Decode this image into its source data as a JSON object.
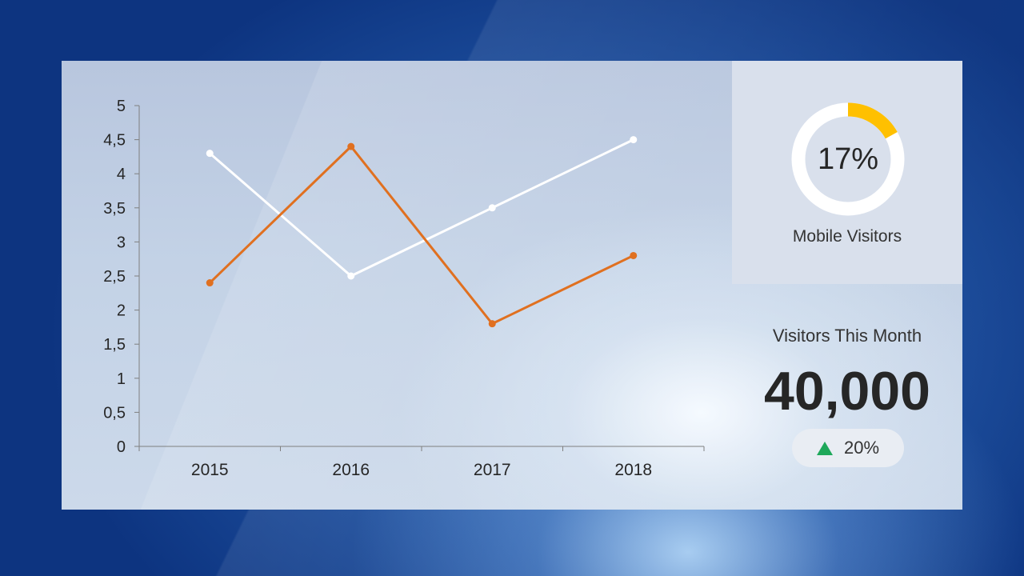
{
  "chart_data": {
    "type": "line",
    "categories": [
      "2015",
      "2016",
      "2017",
      "2018"
    ],
    "series": [
      {
        "color": "#ffffff",
        "values": [
          4.3,
          2.5,
          3.5,
          4.5
        ]
      },
      {
        "color": "#e07020",
        "values": [
          2.4,
          4.4,
          1.8,
          2.8
        ]
      }
    ],
    "ylim": [
      0,
      5
    ],
    "yticks": [
      "0",
      "0,5",
      "1",
      "1,5",
      "2",
      "2,5",
      "3",
      "3,5",
      "4",
      "4,5",
      "5"
    ],
    "grid": false,
    "title": "",
    "xlabel": "",
    "ylabel": ""
  },
  "mobile": {
    "percent_text": "17%",
    "fraction": 0.17,
    "label": "Mobile Visitors",
    "ring_color": "#ffffff",
    "fill_color": "#ffc000"
  },
  "visitors": {
    "title": "Visitors This Month",
    "value": "40,000",
    "change_text": "20%",
    "change_icon": "triangle-up-icon",
    "change_color": "#1ea85a"
  }
}
